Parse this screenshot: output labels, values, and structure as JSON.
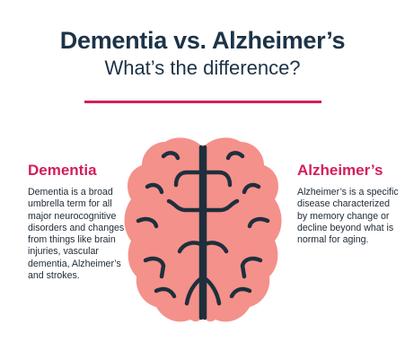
{
  "header": {
    "title": "Dementia vs. Alzheimer’s",
    "subtitle": "What’s the difference?"
  },
  "dementia": {
    "heading": "Dementia",
    "text": "Dementia is a broad umbrella term for all major neurocognitive disorders and changes from things like brain injuries, vascular dementia, Alzheimer’s and strokes."
  },
  "alzheimers": {
    "heading": "Alzheimer’s",
    "text": "Alzheimer’s is a specific disease characterized by memory change or decline beyond what is normal for aging."
  },
  "colors": {
    "heading_accent": "#d31e5e",
    "title": "#1d3347",
    "brain_fill": "#f4918a",
    "brain_lines": "#1f2f3d"
  },
  "illustration": {
    "icon": "brain-icon"
  }
}
